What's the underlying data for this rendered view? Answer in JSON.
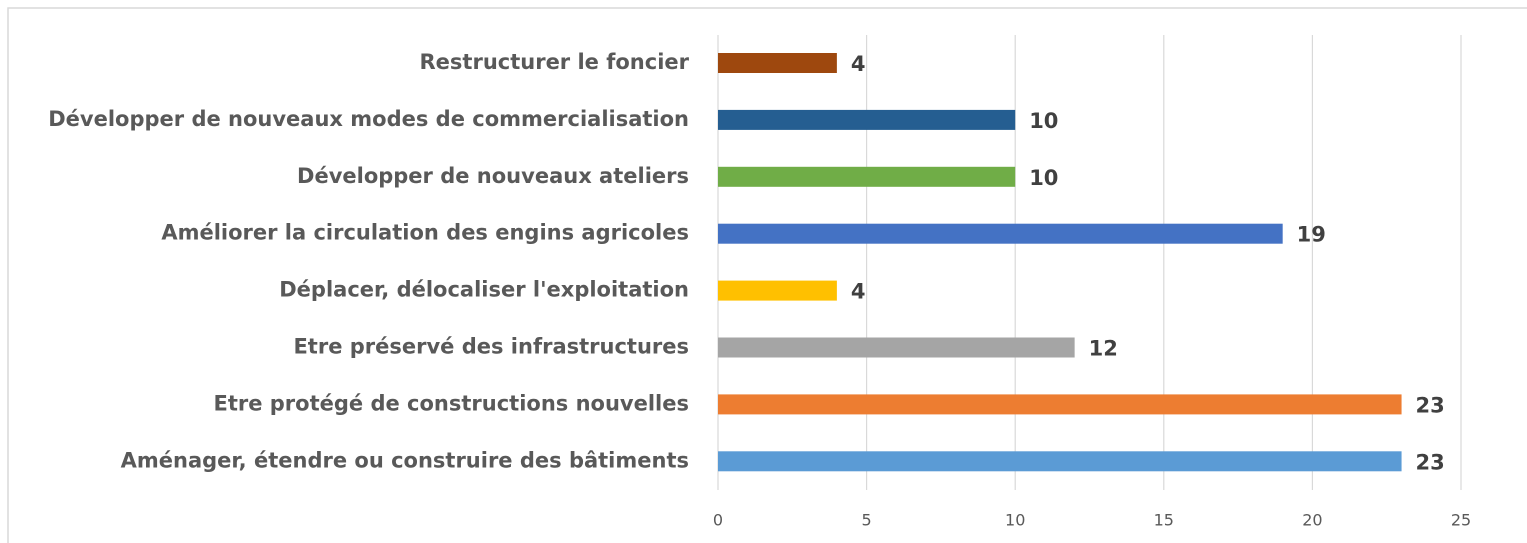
{
  "chart_data": {
    "type": "barh",
    "categories": [
      "Restructurer le foncier",
      "Développer de nouveaux modes de commercialisation",
      "Développer de nouveaux ateliers",
      "Améliorer la circulation des engins agricoles",
      "Déplacer, délocaliser l'exploitation",
      "Etre préservé des infrastructures",
      "Etre protégé de constructions nouvelles",
      "Aménager, étendre ou construire des bâtiments"
    ],
    "values": [
      4,
      10,
      10,
      19,
      4,
      12,
      23,
      23
    ],
    "colors": [
      "#9e480e",
      "#255e91",
      "#70ad47",
      "#4472c4",
      "#ffc000",
      "#a5a5a5",
      "#ed7d31",
      "#5b9bd5"
    ],
    "xlim": [
      0,
      25
    ],
    "xticks": [
      0,
      5,
      10,
      15,
      20,
      25
    ],
    "grid": true
  }
}
